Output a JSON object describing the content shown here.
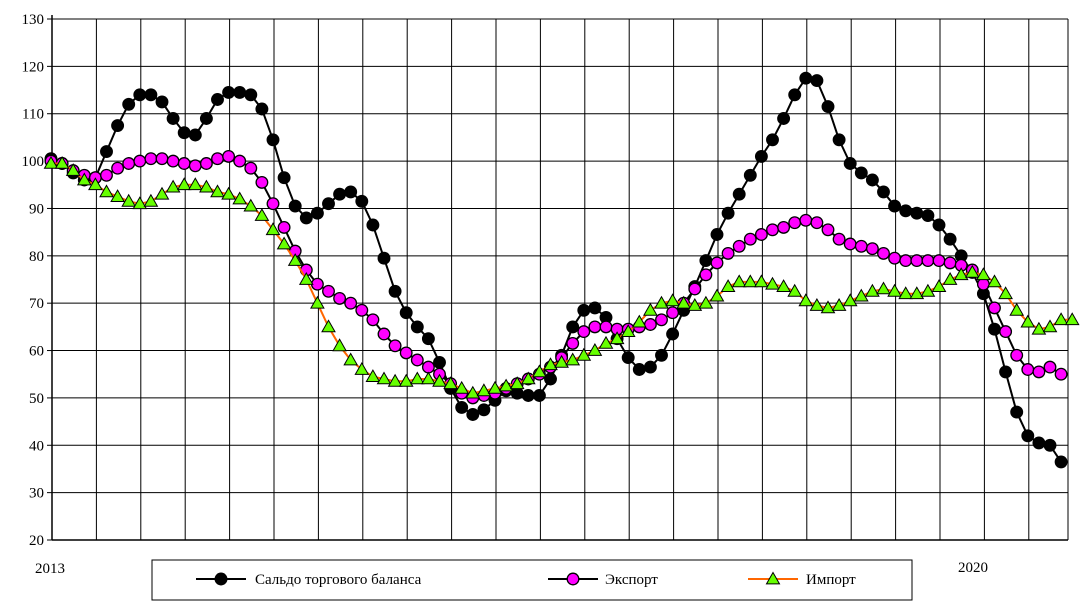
{
  "chart_data": {
    "type": "line",
    "title": "",
    "xlabel": "",
    "ylabel": "",
    "ylim": [
      20,
      130
    ],
    "yticks": [
      20,
      30,
      40,
      50,
      60,
      70,
      80,
      90,
      100,
      110,
      120,
      130
    ],
    "x_labels": [
      "2013",
      "2020"
    ],
    "grid": true,
    "legend_position": "bottom",
    "series": [
      {
        "name": "Сальдо торгового баланса",
        "color": "#000000",
        "marker": "circle",
        "marker_fill": "#000000",
        "line_color": "#000000",
        "values": [
          100.5,
          99.5,
          97.5,
          96,
          96.5,
          102,
          107.5,
          112,
          114,
          114,
          112.5,
          109,
          106,
          105.5,
          109,
          113,
          114.5,
          114.5,
          114,
          111,
          104.5,
          96.5,
          90.5,
          88,
          89,
          91,
          93,
          93.5,
          91.5,
          86.5,
          79.5,
          72.5,
          68,
          65,
          62.5,
          57.5,
          52,
          48,
          46.5,
          47.5,
          49.5,
          51.5,
          51,
          50.5,
          50.5,
          54,
          59,
          65,
          68.5,
          69,
          67,
          62.5,
          58.5,
          56,
          56.5,
          59,
          63.5,
          68.5,
          73.5,
          79,
          84.5,
          89,
          93,
          97,
          101,
          104.5,
          109,
          114,
          117.5,
          117,
          111.5,
          104.5,
          99.5,
          97.5,
          96,
          93.5,
          90.5,
          89.5,
          89,
          88.5,
          86.5,
          83.5,
          80,
          76.5,
          72,
          64.5,
          55.5,
          47,
          42,
          40.5,
          40,
          36.5
        ]
      },
      {
        "name": "Экспорт",
        "color": "#ff00ff",
        "marker": "circle",
        "marker_fill": "#ff00ff",
        "line_color": "#000000",
        "values": [
          100,
          99.5,
          98,
          97,
          96.5,
          97,
          98.5,
          99.5,
          100,
          100.5,
          100.5,
          100,
          99.5,
          99,
          99.5,
          100.5,
          101,
          100,
          98.5,
          95.5,
          91,
          86,
          81,
          77,
          74,
          72.5,
          71,
          70,
          68.5,
          66.5,
          63.5,
          61,
          59.5,
          58,
          56.5,
          55,
          53,
          51,
          50,
          50.5,
          51,
          52,
          53,
          54,
          55,
          56.5,
          58.5,
          61.5,
          64,
          65,
          65,
          64.5,
          64.5,
          65,
          65.5,
          66.5,
          68,
          70,
          73,
          76,
          78.5,
          80.5,
          82,
          83.5,
          84.5,
          85.5,
          86,
          87,
          87.5,
          87,
          85.5,
          83.5,
          82.5,
          82,
          81.5,
          80.5,
          79.5,
          79,
          79,
          79,
          79,
          78.5,
          78,
          77,
          74,
          69,
          64,
          59,
          56,
          55.5,
          56.5,
          55
        ]
      },
      {
        "name": "Импорт",
        "color": "#66ff00",
        "marker": "triangle",
        "marker_fill": "#66ff00",
        "line_color": "#ff6600",
        "values": [
          99.5,
          99.5,
          98,
          96,
          95,
          93.5,
          92.5,
          91.5,
          91,
          91.5,
          93,
          94.5,
          95,
          95,
          94.5,
          93.5,
          93,
          92,
          90.5,
          88.5,
          85.5,
          82.5,
          79,
          75,
          70,
          65,
          61,
          58,
          56,
          54.5,
          54,
          53.5,
          53.5,
          54,
          54,
          53.5,
          53,
          52,
          51,
          51.5,
          52,
          52.5,
          53,
          54,
          55.5,
          57,
          57.5,
          58,
          59,
          60,
          61.5,
          62.5,
          64,
          66,
          68.5,
          70,
          70.5,
          70,
          69.5,
          70,
          71.5,
          73.5,
          74.5,
          74.5,
          74.5,
          74,
          73.5,
          72.5,
          70.5,
          69.5,
          69,
          69.5,
          70.5,
          71.5,
          72.5,
          73,
          72.5,
          72,
          72,
          72.5,
          73.5,
          75,
          76,
          76.5,
          76,
          74.5,
          72,
          68.5,
          66,
          64.5,
          65,
          66.5,
          66.5
        ]
      }
    ]
  }
}
